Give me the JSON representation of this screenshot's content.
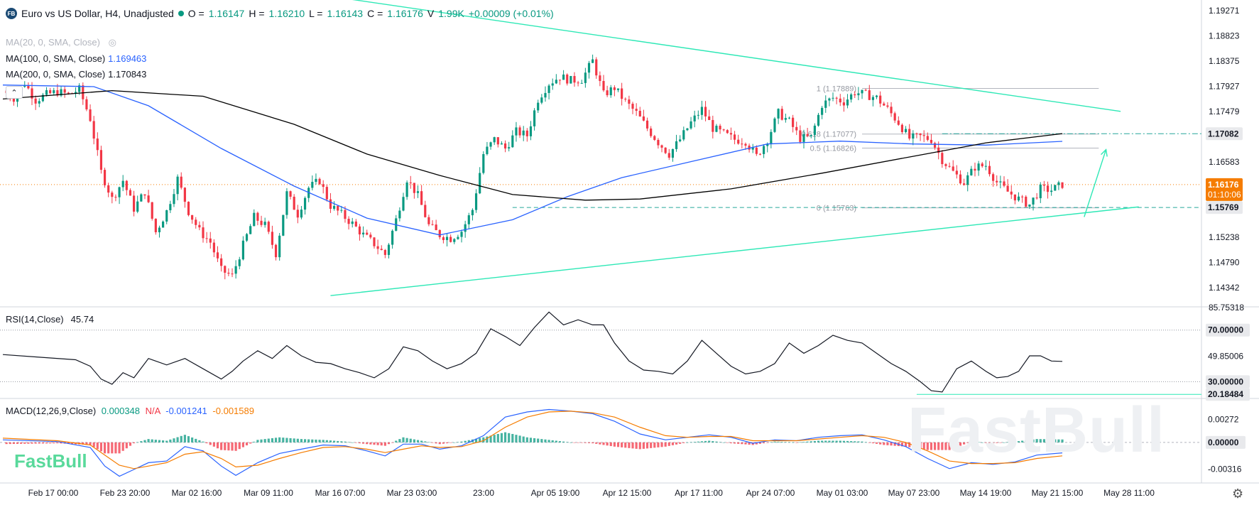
{
  "header": {
    "logo_text": "FB",
    "title": "Euro vs US Dollar, H4, Unadjusted",
    "status_color": "#089981",
    "o_label": "O =",
    "o_value": "1.16147",
    "h_label": "H =",
    "h_value": "1.16210",
    "l_label": "L =",
    "l_value": "1.16143",
    "c_label": "C =",
    "c_value": "1.16176",
    "v_label": "V",
    "v_value": "1.99K",
    "change": "+0.00009 (+0.01%)"
  },
  "legend": {
    "ma20": {
      "text": "MA(20, 0, SMA, Close)",
      "value": "",
      "color": "#d1d4dc"
    },
    "ma100": {
      "text": "MA(100, 0, SMA, Close)",
      "value": "1.169463",
      "color": "#2962ff"
    },
    "ma200": {
      "text": "MA(200, 0, SMA, Close)",
      "value": "1.170843",
      "color": "#000000"
    },
    "collapse_glyph": "⌃"
  },
  "rsi_legend": {
    "text": "RSI(14,Close)",
    "value": "45.74"
  },
  "macd_legend": {
    "text": "MACD(12,26,9,Close)",
    "hist": "0.000348",
    "na": "N/A",
    "macd": "-0.001241",
    "signal": "-0.001589",
    "hist_color": "#089981",
    "na_color": "#f23645",
    "macd_color": "#2962ff",
    "signal_color": "#f57c00"
  },
  "watermark": "FastBull",
  "logo_watermark": "FastBull",
  "settings_icon": "gear-icon",
  "chart_data": {
    "type": "candlestick",
    "colors": {
      "up": "#089981",
      "down": "#f23645",
      "trend": "#2ee8b6",
      "ma100": "#2962ff",
      "ma200": "#000000",
      "price_tag": "#f57c00"
    },
    "price_axis": {
      "ticks": [
        "1.19271",
        "1.18823",
        "1.18375",
        "1.17927",
        "1.17479",
        "1.16583",
        "1.15238",
        "1.14790",
        "1.14342"
      ],
      "tick_values": [
        1.19271,
        1.18823,
        1.18375,
        1.17927,
        1.17479,
        1.16583,
        1.15238,
        1.1479,
        1.14342
      ],
      "range": [
        1.14,
        1.194
      ],
      "highlight_labels": [
        {
          "text": "1.17082",
          "value": 1.17082,
          "bg": "#e8e9ec",
          "fg": "#131722"
        },
        {
          "text": "1.16176",
          "value": 1.16176,
          "bg": "#f57c00",
          "fg": "#ffffff",
          "sub": "01:10:06"
        },
        {
          "text": "1.15769",
          "value": 1.15769,
          "bg": "#e8e9ec",
          "fg": "#131722"
        }
      ]
    },
    "time_axis": [
      "Feb 17 00:00",
      "Feb 23 20:00",
      "Mar 02 16:00",
      "Mar 09 11:00",
      "Mar 16 07:00",
      "Mar 23 03:00",
      "23:00",
      "Apr 05 19:00",
      "Apr 12 15:00",
      "Apr 17 11:00",
      "Apr 24 07:00",
      "May 01 03:00",
      "May 07 23:00",
      "May 14 19:00",
      "May 21 15:00",
      "May 28 11:00"
    ],
    "price_path": [
      [
        0,
        1.1785
      ],
      [
        3,
        1.1772
      ],
      [
        6,
        1.1798
      ],
      [
        9,
        1.1768
      ],
      [
        12,
        1.1778
      ],
      [
        15,
        1.1783
      ],
      [
        18,
        1.1778
      ],
      [
        21,
        1.1787
      ],
      [
        24,
        1.1735
      ],
      [
        27,
        1.164
      ],
      [
        30,
        1.1592
      ],
      [
        33,
        1.1625
      ],
      [
        36,
        1.1575
      ],
      [
        39,
        1.1605
      ],
      [
        42,
        1.1533
      ],
      [
        45,
        1.157
      ],
      [
        48,
        1.1628
      ],
      [
        51,
        1.157
      ],
      [
        54,
        1.1535
      ],
      [
        57,
        1.1515
      ],
      [
        60,
        1.1465
      ],
      [
        63,
        1.1455
      ],
      [
        66,
        1.151
      ],
      [
        69,
        1.156
      ],
      [
        72,
        1.1545
      ],
      [
        75,
        1.1495
      ],
      [
        78,
        1.1602
      ],
      [
        81,
        1.1565
      ],
      [
        84,
        1.1612
      ],
      [
        87,
        1.1625
      ],
      [
        90,
        1.158
      ],
      [
        93,
        1.1565
      ],
      [
        96,
        1.1548
      ],
      [
        99,
        1.1528
      ],
      [
        102,
        1.1512
      ],
      [
        105,
        1.1493
      ],
      [
        108,
        1.1555
      ],
      [
        111,
        1.1628
      ],
      [
        114,
        1.1598
      ],
      [
        117,
        1.1545
      ],
      [
        120,
        1.1528
      ],
      [
        123,
        1.1522
      ],
      [
        126,
        1.1535
      ],
      [
        129,
        1.1573
      ],
      [
        132,
        1.1672
      ],
      [
        135,
        1.1698
      ],
      [
        138,
        1.1682
      ],
      [
        141,
        1.1712
      ],
      [
        144,
        1.1705
      ],
      [
        147,
        1.177
      ],
      [
        150,
        1.1798
      ],
      [
        153,
        1.181
      ],
      [
        156,
        1.1803
      ],
      [
        159,
        1.1805
      ],
      [
        162,
        1.1838
      ],
      [
        165,
        1.1778
      ],
      [
        168,
        1.179
      ],
      [
        171,
        1.1765
      ],
      [
        174,
        1.1745
      ],
      [
        177,
        1.1718
      ],
      [
        180,
        1.1693
      ],
      [
        183,
        1.1672
      ],
      [
        186,
        1.1698
      ],
      [
        189,
        1.1728
      ],
      [
        192,
        1.1752
      ],
      [
        195,
        1.1718
      ],
      [
        198,
        1.1708
      ],
      [
        201,
        1.1698
      ],
      [
        204,
        1.1695
      ],
      [
        207,
        1.1668
      ],
      [
        210,
        1.1698
      ],
      [
        213,
        1.1745
      ],
      [
        216,
        1.173
      ],
      [
        219,
        1.17
      ],
      [
        222,
        1.1702
      ],
      [
        225,
        1.176
      ],
      [
        228,
        1.1772
      ],
      [
        231,
        1.1765
      ],
      [
        234,
        1.1782
      ],
      [
        237,
        1.1778
      ],
      [
        240,
        1.1772
      ],
      [
        243,
        1.1752
      ],
      [
        246,
        1.1728
      ],
      [
        249,
        1.17
      ],
      [
        252,
        1.1703
      ],
      [
        255,
        1.1698
      ],
      [
        258,
        1.1662
      ],
      [
        261,
        1.164
      ],
      [
        264,
        1.1621
      ],
      [
        267,
        1.1649
      ],
      [
        270,
        1.1652
      ],
      [
        273,
        1.1622
      ],
      [
        276,
        1.1605
      ],
      [
        279,
        1.1592
      ],
      [
        282,
        1.1582
      ],
      [
        285,
        1.161
      ],
      [
        288,
        1.1608
      ],
      [
        291,
        1.1618
      ]
    ],
    "ma100_path": [
      [
        0,
        1.1795
      ],
      [
        25,
        1.1792
      ],
      [
        40,
        1.1758
      ],
      [
        60,
        1.1682
      ],
      [
        80,
        1.1615
      ],
      [
        100,
        1.1558
      ],
      [
        120,
        1.1528
      ],
      [
        140,
        1.1555
      ],
      [
        155,
        1.1596
      ],
      [
        170,
        1.163
      ],
      [
        190,
        1.166
      ],
      [
        210,
        1.169
      ],
      [
        230,
        1.1695
      ],
      [
        250,
        1.169
      ],
      [
        270,
        1.1688
      ],
      [
        291,
        1.16946
      ]
    ],
    "ma200_path": [
      [
        0,
        1.177
      ],
      [
        30,
        1.1785
      ],
      [
        55,
        1.1775
      ],
      [
        80,
        1.1725
      ],
      [
        100,
        1.1672
      ],
      [
        120,
        1.1634
      ],
      [
        140,
        1.16
      ],
      [
        160,
        1.159
      ],
      [
        175,
        1.1592
      ],
      [
        200,
        1.161
      ],
      [
        225,
        1.1638
      ],
      [
        250,
        1.1668
      ],
      [
        270,
        1.1692
      ],
      [
        291,
        1.17084
      ]
    ],
    "trendlines": [
      {
        "from": [
          93,
          1.195
        ],
        "to": [
          307,
          1.1748
        ]
      },
      {
        "from": [
          90,
          1.142
        ],
        "to": [
          312,
          1.1578
        ]
      },
      {
        "from": [
          297,
          1.156
        ],
        "to": [
          303,
          1.168
        ],
        "arrow": true
      }
    ],
    "fibonacci": [
      {
        "label": "1 (1.17889)",
        "value": 1.17889
      },
      {
        "label": "0.618 (1.17077)",
        "value": 1.17077
      },
      {
        "label": "0.5 (1.16826)",
        "value": 1.16826
      },
      {
        "label": "0 (1.15763)",
        "value": 1.15763
      }
    ],
    "rsi": {
      "ticks": [
        "70.00000",
        "49.85006",
        "30.00000",
        "20.18484"
      ],
      "tick_values": [
        70,
        49.85,
        30,
        20.18
      ],
      "top_label": "85.75318",
      "range": [
        17,
        88
      ],
      "levels": [
        70,
        30
      ],
      "path": [
        [
          0,
          51
        ],
        [
          10,
          49
        ],
        [
          20,
          47
        ],
        [
          24,
          42
        ],
        [
          27,
          32
        ],
        [
          30,
          28
        ],
        [
          33,
          37
        ],
        [
          36,
          33
        ],
        [
          40,
          48
        ],
        [
          45,
          43
        ],
        [
          50,
          48
        ],
        [
          55,
          40
        ],
        [
          60,
          32
        ],
        [
          63,
          38
        ],
        [
          66,
          46
        ],
        [
          70,
          54
        ],
        [
          74,
          48
        ],
        [
          78,
          58
        ],
        [
          82,
          50
        ],
        [
          86,
          45
        ],
        [
          90,
          44
        ],
        [
          94,
          40
        ],
        [
          98,
          37
        ],
        [
          102,
          33
        ],
        [
          106,
          40
        ],
        [
          110,
          57
        ],
        [
          114,
          54
        ],
        [
          118,
          46
        ],
        [
          122,
          40
        ],
        [
          126,
          44
        ],
        [
          130,
          52
        ],
        [
          134,
          71
        ],
        [
          138,
          65
        ],
        [
          142,
          58
        ],
        [
          146,
          72
        ],
        [
          150,
          84
        ],
        [
          154,
          74
        ],
        [
          158,
          78
        ],
        [
          162,
          74
        ],
        [
          165,
          74
        ],
        [
          168,
          60
        ],
        [
          172,
          46
        ],
        [
          176,
          39
        ],
        [
          180,
          38
        ],
        [
          184,
          36
        ],
        [
          188,
          46
        ],
        [
          192,
          62
        ],
        [
          196,
          52
        ],
        [
          200,
          42
        ],
        [
          204,
          36
        ],
        [
          208,
          38
        ],
        [
          212,
          44
        ],
        [
          216,
          60
        ],
        [
          220,
          52
        ],
        [
          224,
          58
        ],
        [
          228,
          66
        ],
        [
          232,
          62
        ],
        [
          236,
          60
        ],
        [
          240,
          52
        ],
        [
          244,
          44
        ],
        [
          248,
          38
        ],
        [
          252,
          30
        ],
        [
          255,
          23
        ],
        [
          258,
          22
        ],
        [
          262,
          40
        ],
        [
          266,
          46
        ],
        [
          270,
          38
        ],
        [
          273,
          33
        ],
        [
          276,
          34
        ],
        [
          279,
          38
        ],
        [
          282,
          50
        ],
        [
          285,
          50
        ],
        [
          288,
          46
        ],
        [
          291,
          45.74
        ]
      ]
    },
    "macd": {
      "ticks": [
        "0.00272",
        "0.00000",
        "-0.00316"
      ],
      "tick_values": [
        0.00272,
        0.0,
        -0.00316
      ],
      "range": [
        -0.0048,
        0.0052
      ],
      "macd_path": [
        [
          0,
          0.0003
        ],
        [
          15,
          0.0001
        ],
        [
          24,
          -0.0006
        ],
        [
          28,
          -0.0028
        ],
        [
          32,
          -0.004
        ],
        [
          36,
          -0.0032
        ],
        [
          40,
          -0.0024
        ],
        [
          45,
          -0.0022
        ],
        [
          50,
          -0.0005
        ],
        [
          55,
          -0.001
        ],
        [
          60,
          -0.0028
        ],
        [
          64,
          -0.0039
        ],
        [
          70,
          -0.0024
        ],
        [
          76,
          -0.0013
        ],
        [
          82,
          -0.0008
        ],
        [
          88,
          -0.0003
        ],
        [
          94,
          -0.0004
        ],
        [
          100,
          -0.001
        ],
        [
          105,
          -0.0016
        ],
        [
          110,
          -0.0002
        ],
        [
          115,
          -0.0002
        ],
        [
          120,
          -0.0008
        ],
        [
          126,
          -0.0004
        ],
        [
          132,
          0.0008
        ],
        [
          138,
          0.003
        ],
        [
          144,
          0.0036
        ],
        [
          150,
          0.0039
        ],
        [
          156,
          0.0037
        ],
        [
          162,
          0.0034
        ],
        [
          168,
          0.0025
        ],
        [
          175,
          0.001
        ],
        [
          182,
          0.0003
        ],
        [
          188,
          0.0006
        ],
        [
          194,
          0.0009
        ],
        [
          200,
          0.0006
        ],
        [
          206,
          -0.0001
        ],
        [
          212,
          0.0003
        ],
        [
          218,
          0.0002
        ],
        [
          224,
          0.0006
        ],
        [
          230,
          0.0008
        ],
        [
          236,
          0.0009
        ],
        [
          242,
          0.0003
        ],
        [
          248,
          -0.0005
        ],
        [
          254,
          -0.0019
        ],
        [
          260,
          -0.0031
        ],
        [
          266,
          -0.0024
        ],
        [
          272,
          -0.0026
        ],
        [
          278,
          -0.0023
        ],
        [
          284,
          -0.0015
        ],
        [
          291,
          -0.001241
        ]
      ],
      "signal_path": [
        [
          0,
          0.0005
        ],
        [
          15,
          0.0002
        ],
        [
          24,
          -0.0003
        ],
        [
          28,
          -0.0015
        ],
        [
          32,
          -0.0027
        ],
        [
          36,
          -0.0031
        ],
        [
          40,
          -0.0028
        ],
        [
          45,
          -0.0024
        ],
        [
          50,
          -0.0014
        ],
        [
          55,
          -0.0011
        ],
        [
          60,
          -0.0019
        ],
        [
          64,
          -0.0029
        ],
        [
          70,
          -0.0027
        ],
        [
          76,
          -0.0019
        ],
        [
          82,
          -0.0012
        ],
        [
          88,
          -0.0006
        ],
        [
          94,
          -0.0005
        ],
        [
          100,
          -0.0008
        ],
        [
          105,
          -0.0012
        ],
        [
          110,
          -0.0008
        ],
        [
          115,
          -0.0004
        ],
        [
          120,
          -0.0006
        ],
        [
          126,
          -0.0005
        ],
        [
          132,
          0.0002
        ],
        [
          138,
          0.0018
        ],
        [
          144,
          0.003
        ],
        [
          150,
          0.0036
        ],
        [
          156,
          0.0037
        ],
        [
          162,
          0.0035
        ],
        [
          168,
          0.003
        ],
        [
          175,
          0.0018
        ],
        [
          182,
          0.0008
        ],
        [
          188,
          0.0006
        ],
        [
          194,
          0.0007
        ],
        [
          200,
          0.0007
        ],
        [
          206,
          0.0002
        ],
        [
          212,
          0.0002
        ],
        [
          218,
          0.0002
        ],
        [
          224,
          0.0004
        ],
        [
          230,
          0.0006
        ],
        [
          236,
          0.0008
        ],
        [
          242,
          0.0006
        ],
        [
          248,
          0.0
        ],
        [
          254,
          -0.001
        ],
        [
          260,
          -0.0022
        ],
        [
          266,
          -0.0025
        ],
        [
          272,
          -0.0025
        ],
        [
          278,
          -0.0024
        ],
        [
          284,
          -0.0019
        ],
        [
          291,
          -0.001589
        ]
      ]
    }
  }
}
